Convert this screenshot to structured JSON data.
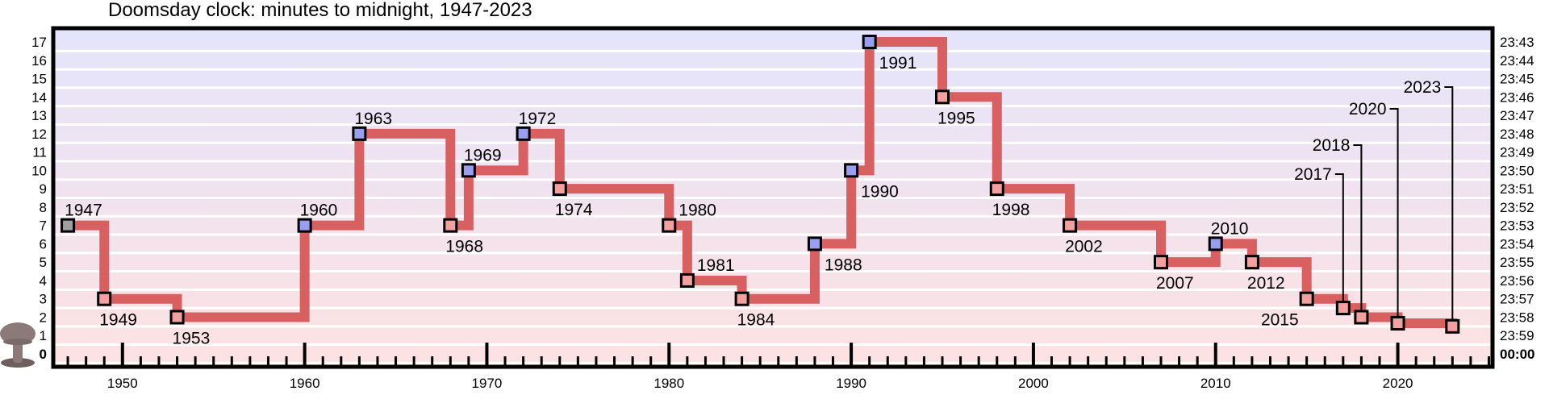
{
  "chart_data": {
    "type": "line",
    "title": "Doomsday clock: minutes to midnight, 1947-2023",
    "xlim": [
      1946.2,
      2025.2
    ],
    "ylim": [
      0,
      17
    ],
    "x_ticks": [
      "1950",
      "1960",
      "1970",
      "1980",
      "1990",
      "2000",
      "2010",
      "2020"
    ],
    "y_ticks_left": [
      "0",
      "1",
      "2",
      "3",
      "4",
      "5",
      "6",
      "7",
      "8",
      "9",
      "10",
      "11",
      "12",
      "13",
      "14",
      "15",
      "16",
      "17"
    ],
    "y_ticks_right": [
      "00:00",
      "23:59",
      "23:58",
      "23:57",
      "23:56",
      "23:55",
      "23:54",
      "23:53",
      "23:52",
      "23:51",
      "23:50",
      "23:49",
      "23:48",
      "23:47",
      "23:46",
      "23:45",
      "23:44",
      "23:43"
    ],
    "points": [
      {
        "year": 1947,
        "minutes": 7,
        "label": "1947",
        "dir": "start"
      },
      {
        "year": 1949,
        "minutes": 3,
        "label": "1949",
        "dir": "worse"
      },
      {
        "year": 1953,
        "minutes": 2,
        "label": "1953",
        "dir": "worse"
      },
      {
        "year": 1960,
        "minutes": 7,
        "label": "1960",
        "dir": "better"
      },
      {
        "year": 1963,
        "minutes": 12,
        "label": "1963",
        "dir": "better"
      },
      {
        "year": 1968,
        "minutes": 7,
        "label": "1968",
        "dir": "worse"
      },
      {
        "year": 1969,
        "minutes": 10,
        "label": "1969",
        "dir": "better"
      },
      {
        "year": 1972,
        "minutes": 12,
        "label": "1972",
        "dir": "better"
      },
      {
        "year": 1974,
        "minutes": 9,
        "label": "1974",
        "dir": "worse"
      },
      {
        "year": 1980,
        "minutes": 7,
        "label": "1980",
        "dir": "worse"
      },
      {
        "year": 1981,
        "minutes": 4,
        "label": "1981",
        "dir": "worse"
      },
      {
        "year": 1984,
        "minutes": 3,
        "label": "1984",
        "dir": "worse"
      },
      {
        "year": 1988,
        "minutes": 6,
        "label": "1988",
        "dir": "better"
      },
      {
        "year": 1990,
        "minutes": 10,
        "label": "1990",
        "dir": "better"
      },
      {
        "year": 1991,
        "minutes": 17,
        "label": "1991",
        "dir": "better"
      },
      {
        "year": 1995,
        "minutes": 14,
        "label": "1995",
        "dir": "worse"
      },
      {
        "year": 1998,
        "minutes": 9,
        "label": "1998",
        "dir": "worse"
      },
      {
        "year": 2002,
        "minutes": 7,
        "label": "2002",
        "dir": "worse"
      },
      {
        "year": 2007,
        "minutes": 5,
        "label": "2007",
        "dir": "worse"
      },
      {
        "year": 2010,
        "minutes": 6,
        "label": "2010",
        "dir": "better"
      },
      {
        "year": 2012,
        "minutes": 5,
        "label": "2012",
        "dir": "worse"
      },
      {
        "year": 2015,
        "minutes": 3,
        "label": "2015",
        "dir": "worse"
      },
      {
        "year": 2017,
        "minutes": 2.5,
        "label": "2017",
        "dir": "worse"
      },
      {
        "year": 2018,
        "minutes": 2,
        "label": "2018",
        "dir": "worse"
      },
      {
        "year": 2020,
        "minutes": 1.67,
        "label": "2020",
        "dir": "worse"
      },
      {
        "year": 2023,
        "minutes": 1.5,
        "label": "2023",
        "dir": "worse"
      }
    ],
    "colors": {
      "line": "#d86060",
      "marker_worse": "#f4a0a0",
      "marker_better": "#9a9ef0",
      "marker_start": "#a0a0a0",
      "band_top": "#e4e4fb",
      "band_bottom": "#fde2e2",
      "zero_label": "#ff2020",
      "mushroom": "#8c7a7a"
    },
    "grid": false,
    "legend": "none"
  }
}
